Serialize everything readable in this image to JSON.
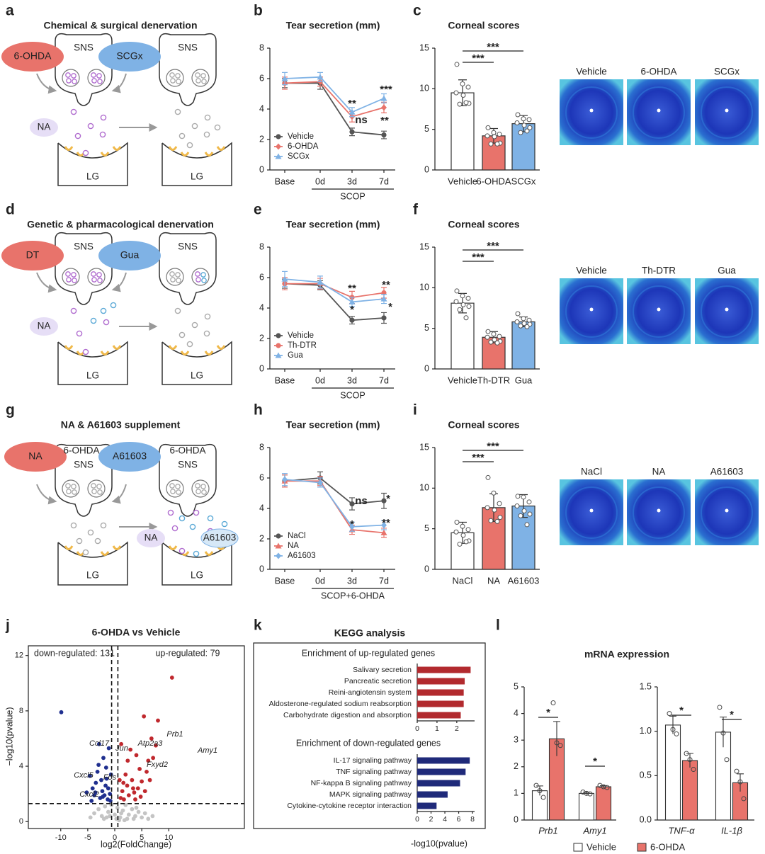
{
  "diagrams": [
    {
      "panel": "a",
      "title": "Chemical & surgical denervation",
      "labels": [
        "6-OHDA",
        "SCGx",
        "SNS",
        "SNS",
        "NA",
        "LG",
        "LG"
      ]
    },
    {
      "panel": "d",
      "title": "Genetic & pharmacological denervation",
      "labels": [
        "DT",
        "Gua",
        "SNS",
        "SNS",
        "NA",
        "LG",
        "LG"
      ]
    },
    {
      "panel": "g",
      "title": "NA & A61603 supplement",
      "labels": [
        "NA",
        "6-OHDA",
        "A61603",
        "6-OHDA",
        "SNS",
        "SNS",
        "NA",
        "A61603",
        "LG",
        "LG"
      ]
    }
  ],
  "images": [
    {
      "labels": [
        "Vehicle",
        "6-OHDA",
        "SCGx"
      ]
    },
    {
      "labels": [
        "Vehicle",
        "Th-DTR",
        "Gua"
      ]
    },
    {
      "labels": [
        "NaCl",
        "NA",
        "A61603"
      ]
    }
  ],
  "chart_data": [
    {
      "panel": "b",
      "type": "line",
      "title": "Tear secretion (mm)",
      "categories": [
        "Base",
        "0d",
        "3d",
        "7d"
      ],
      "group_label": "SCOP",
      "ylim": [
        0,
        8
      ],
      "yticks": [
        0,
        2,
        4,
        6,
        8
      ],
      "series": [
        {
          "name": "Vehicle",
          "color": "#555555",
          "marker": "circle",
          "values": [
            5.7,
            5.7,
            2.5,
            2.3
          ],
          "errors": [
            0.3,
            0.4,
            0.25,
            0.25
          ]
        },
        {
          "name": "6-OHDA",
          "color": "#e8736b",
          "marker": "diamond",
          "values": [
            5.7,
            5.8,
            3.5,
            4.1
          ],
          "errors": [
            0.4,
            0.3,
            0.35,
            0.35
          ]
        },
        {
          "name": "SCGx",
          "color": "#7fb2e5",
          "marker": "triangle",
          "values": [
            6.0,
            6.1,
            3.8,
            4.7
          ],
          "errors": [
            0.4,
            0.3,
            0.3,
            0.3
          ]
        }
      ],
      "annotations": [
        "**",
        "ns",
        "***",
        "**"
      ]
    },
    {
      "panel": "c",
      "type": "bar",
      "title": "Corneal scores",
      "categories": [
        "Vehicle",
        "6-OHDA",
        "SCGx"
      ],
      "colors": [
        "#ffffff",
        "#e8736b",
        "#7fb2e5"
      ],
      "values": [
        9.5,
        4.2,
        5.7
      ],
      "errors": [
        1.6,
        0.9,
        1.0
      ],
      "points": [
        [
          13,
          10.6,
          10.2,
          9.5,
          9.2,
          8.2,
          8.1,
          8.3
        ],
        [
          5.2,
          4.6,
          4.4,
          4.2,
          4.1,
          3.3,
          3.2,
          3.2
        ],
        [
          6.8,
          6.3,
          6.2,
          5.8,
          5.5,
          5.2,
          4.6,
          4.8
        ]
      ],
      "ylim": [
        0,
        15
      ],
      "yticks": [
        0,
        5,
        10,
        15
      ],
      "significance": [
        "***",
        "***"
      ]
    },
    {
      "panel": "e",
      "type": "line",
      "title": "Tear secretion (mm)",
      "categories": [
        "Base",
        "0d",
        "3d",
        "7d"
      ],
      "group_label": "SCOP",
      "ylim": [
        0,
        8
      ],
      "yticks": [
        0,
        2,
        4,
        6,
        8
      ],
      "series": [
        {
          "name": "Vehicle",
          "color": "#555555",
          "marker": "circle",
          "values": [
            5.6,
            5.5,
            3.2,
            3.35
          ],
          "errors": [
            0.3,
            0.3,
            0.25,
            0.35
          ]
        },
        {
          "name": "Th-DTR",
          "color": "#e8736b",
          "marker": "circle",
          "values": [
            5.6,
            5.6,
            4.7,
            5.0
          ],
          "errors": [
            0.4,
            0.35,
            0.4,
            0.35
          ]
        },
        {
          "name": "Gua",
          "color": "#7fb2e5",
          "marker": "triangle",
          "values": [
            5.9,
            5.7,
            4.4,
            4.6
          ],
          "errors": [
            0.5,
            0.4,
            0.3,
            0.3
          ]
        }
      ],
      "annotations": [
        "**",
        "*",
        "**",
        "*"
      ]
    },
    {
      "panel": "f",
      "type": "bar",
      "title": "Corneal scores",
      "categories": [
        "Vehicle",
        "Th-DTR",
        "Gua"
      ],
      "colors": [
        "#ffffff",
        "#e8736b",
        "#7fb2e5"
      ],
      "values": [
        8.1,
        3.9,
        5.8
      ],
      "errors": [
        1.2,
        0.7,
        0.6
      ],
      "points": [
        [
          9.6,
          9.0,
          8.7,
          8.3,
          7.9,
          7.7,
          7.3,
          6.3
        ],
        [
          4.6,
          4.3,
          4.0,
          3.9,
          3.6,
          3.4,
          3.3,
          3.2
        ],
        [
          6.8,
          6.2,
          6.0,
          5.8,
          5.6,
          5.5,
          5.3,
          5.2
        ]
      ],
      "ylim": [
        0,
        15
      ],
      "yticks": [
        0,
        5,
        10,
        15
      ],
      "significance": [
        "***",
        "***"
      ]
    },
    {
      "panel": "h",
      "type": "line",
      "title": "Tear secretion (mm)",
      "categories": [
        "Base",
        "0d",
        "3d",
        "7d"
      ],
      "group_label": "SCOP+6-OHDA",
      "ylim": [
        0,
        8
      ],
      "yticks": [
        0,
        2,
        4,
        6,
        8
      ],
      "series": [
        {
          "name": "NaCl",
          "color": "#555555",
          "marker": "circle",
          "values": [
            5.8,
            6.0,
            4.3,
            4.5
          ],
          "errors": [
            0.4,
            0.4,
            0.4,
            0.5
          ]
        },
        {
          "name": "NA",
          "color": "#e8736b",
          "marker": "triangle",
          "values": [
            5.8,
            5.8,
            2.6,
            2.4
          ],
          "errors": [
            0.4,
            0.3,
            0.3,
            0.3
          ]
        },
        {
          "name": "A61603",
          "color": "#7fb2e5",
          "marker": "diamond",
          "values": [
            5.9,
            5.7,
            2.8,
            2.9
          ],
          "errors": [
            0.4,
            0.3,
            0.3,
            0.3
          ]
        }
      ],
      "annotations": [
        "ns",
        "*",
        "*",
        "**"
      ]
    },
    {
      "panel": "i",
      "type": "bar",
      "title": "Corneal scores",
      "categories": [
        "NaCl",
        "NA",
        "A61603"
      ],
      "colors": [
        "#ffffff",
        "#e8736b",
        "#7fb2e5"
      ],
      "values": [
        4.5,
        7.6,
        7.8
      ],
      "errors": [
        1.3,
        1.7,
        1.4
      ],
      "points": [
        [
          5.8,
          5.3,
          4.9,
          4.6,
          4.2,
          3.5,
          3.1,
          3.4
        ],
        [
          11.3,
          9.4,
          8.1,
          7.6,
          7.3,
          6.4,
          6.0,
          5.9
        ],
        [
          9.0,
          8.9,
          8.3,
          7.8,
          7.2,
          6.8,
          6.6,
          5.5
        ]
      ],
      "ylim": [
        0,
        15
      ],
      "yticks": [
        0,
        5,
        10,
        15
      ],
      "significance": [
        "***",
        "***"
      ]
    },
    {
      "panel": "j",
      "type": "scatter",
      "title": "6-OHDA vs Vehicle",
      "xlabel": "log2(FoldChange)",
      "ylabel": "−log10(pvalue)",
      "xlim": [
        -16,
        24
      ],
      "ylim": [
        -0.5,
        12.7
      ],
      "xticks": [
        -10,
        -5,
        0,
        5,
        10
      ],
      "yticks": [
        0,
        4,
        8,
        12
      ],
      "vlines": [
        -0.58,
        0.58
      ],
      "hline": 1.3,
      "series": [
        {
          "color": "#1f2f8f",
          "x": [
            -9.9,
            -5.2,
            -4.6,
            -4.1,
            -3.8,
            -3.5,
            -3.2,
            -3.0,
            -2.7,
            -2.5,
            -2.3,
            -2.1,
            -1.9,
            -1.7,
            -1.5,
            -1.3,
            -1.1,
            -0.9,
            -0.8,
            -2.9,
            -3.6,
            -1.6,
            -2.2,
            -1.2,
            -0.7,
            -4.3
          ],
          "y": [
            7.9,
            2.1,
            3.3,
            2.4,
            1.9,
            2.8,
            3.6,
            4.1,
            1.7,
            3.0,
            2.2,
            4.6,
            1.9,
            2.6,
            3.1,
            1.6,
            5.3,
            2.0,
            1.5,
            5.6,
            2.1,
            3.9,
            1.8,
            2.4,
            3.4,
            1.5
          ]
        },
        {
          "color": "#c0282d",
          "x": [
            10.6,
            8.0,
            7.6,
            6.8,
            6.2,
            5.9,
            5.4,
            5.0,
            4.6,
            4.3,
            4.0,
            3.6,
            3.2,
            2.9,
            2.6,
            2.3,
            2.0,
            1.7,
            1.4,
            1.1,
            0.9,
            5.6,
            3.8,
            2.4,
            1.6,
            7.1,
            4.8,
            3.4,
            1.2,
            6.5
          ],
          "y": [
            10.4,
            7.3,
            5.5,
            6.0,
            4.4,
            3.6,
            7.6,
            2.9,
            3.8,
            2.4,
            4.8,
            2.1,
            3.0,
            5.2,
            1.9,
            2.6,
            3.4,
            1.6,
            2.2,
            1.7,
            3.0,
            2.2,
            1.6,
            4.4,
            2.8,
            4.6,
            1.8,
            2.4,
            5.6,
            3.0
          ]
        },
        {
          "color": "#c4c4c4",
          "x": [
            -4.5,
            -3.8,
            -3.0,
            -2.4,
            -1.8,
            -1.2,
            -0.6,
            0,
            0.5,
            1.0,
            1.5,
            2.0,
            2.6,
            3.2,
            3.8,
            4.4,
            5.0,
            5.6,
            6.2,
            7.0,
            -2.0,
            -0.9,
            0.3,
            1.2,
            2.3,
            3.5,
            -1.5,
            0.8,
            1.8,
            4.0
          ],
          "y": [
            0.3,
            0.6,
            0.9,
            0.4,
            1.1,
            0.7,
            1.2,
            0.5,
            1.0,
            0.3,
            0.8,
            1.2,
            0.5,
            0.9,
            0.4,
            0.7,
            0.3,
            0.6,
            0.2,
            0.4,
            0.2,
            0.4,
            0.2,
            0.6,
            0.2,
            0.2,
            0.3,
            0.1,
            0.1,
            1.0
          ]
        }
      ],
      "annotations": [
        {
          "text": "down-regulated: 131",
          "color": "#1f2f8f"
        },
        {
          "text": "up-regulated: 79",
          "color": "#c0282d"
        },
        {
          "text": "Ccl17",
          "color": "#1f2f8f"
        },
        {
          "text": "Jun",
          "color": "#1f2f8f"
        },
        {
          "text": "Cxcl5",
          "color": "#1f2f8f"
        },
        {
          "text": "Fos",
          "color": "#1f2f8f"
        },
        {
          "text": "Cxcl2",
          "color": "#1f2f8f"
        },
        {
          "text": "Atp2a3",
          "color": "#c0282d"
        },
        {
          "text": "Fxyd2",
          "color": "#c0282d"
        },
        {
          "text": "Prb1",
          "color": "#c0282d"
        },
        {
          "text": "Amy1",
          "color": "#c0282d"
        }
      ]
    },
    {
      "panel": "k",
      "type": "hbar",
      "title": "KEGG analysis",
      "subtitle": "Enrichment of up-regulated genes",
      "color": "#b22a2e",
      "categories": [
        "Salivary secretion",
        "Pancreatic secretion",
        "Reini-angiotensin system",
        "Aldosterone-regulated sodium reabsorption",
        "Carbohydrate digestion and absorption"
      ],
      "values": [
        2.7,
        2.4,
        2.35,
        2.35,
        2.2
      ],
      "xlim": [
        0,
        2.9
      ],
      "xticks": [
        0,
        1,
        2
      ]
    },
    {
      "type": "hbar",
      "subtitle": "Enrichment of down-regulated genes",
      "color": "#1f2a7a",
      "xlabel": "-log10(pvalue)",
      "categories": [
        "IL-17 signaling pathway",
        "TNF signaling pathway",
        "NF-kappa B signaling pathway",
        "MAPK signaling pathway",
        "Cytokine-cytokine receptor interaction"
      ],
      "values": [
        7.6,
        7.0,
        6.2,
        4.4,
        2.8
      ],
      "xlim": [
        0,
        8.3
      ],
      "xticks": [
        0,
        2,
        4,
        6,
        8
      ]
    },
    {
      "panel": "l",
      "type": "groupbar",
      "title": "mRNA expression",
      "categories": [
        "Prb1",
        "Amy1"
      ],
      "ylim": [
        0,
        5
      ],
      "yticks": [
        0,
        1,
        2,
        3,
        4,
        5
      ],
      "series": [
        {
          "name": "Vehicle",
          "color": "#ffffff",
          "values": [
            1.1,
            1.0
          ],
          "errors": [
            0.18,
            0.05
          ],
          "points": [
            [
              1.3,
              1.1,
              0.85
            ],
            [
              1.05,
              1.0,
              0.98
            ]
          ]
        },
        {
          "name": "6-OHDA",
          "color": "#e8736b",
          "values": [
            3.05,
            1.25
          ],
          "errors": [
            0.65,
            0.04
          ],
          "points": [
            [
              4.4,
              2.9,
              2.8
            ],
            [
              1.3,
              1.25,
              1.22
            ]
          ]
        }
      ],
      "significance": [
        "*",
        "*"
      ],
      "legend": true
    },
    {
      "type": "groupbar",
      "categories": [
        "TNF-α",
        "IL-1β"
      ],
      "ylim": [
        0,
        1.5
      ],
      "yticks": [
        {
          "value": 0,
          "label": "0.0"
        },
        0.5,
        {
          "value": 1,
          "label": "1.0"
        },
        1.5
      ],
      "series": [
        {
          "color": "#ffffff",
          "values": [
            1.07,
            0.99
          ],
          "errors": [
            0.1,
            0.17
          ],
          "points": [
            [
              1.2,
              1.02,
              0.97
            ],
            [
              1.27,
              0.98,
              0.68
            ]
          ]
        },
        {
          "color": "#e8736b",
          "values": [
            0.67,
            0.42
          ],
          "errors": [
            0.08,
            0.1
          ],
          "points": [
            [
              0.75,
              0.68,
              0.57
            ],
            [
              0.55,
              0.43,
              0.24
            ]
          ]
        }
      ],
      "significance": [
        "*",
        "*"
      ]
    }
  ]
}
